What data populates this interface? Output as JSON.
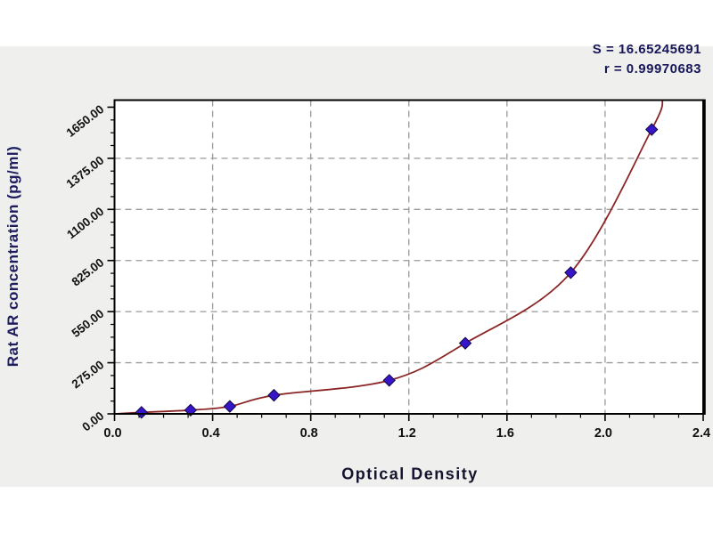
{
  "page": {
    "background": "#ffffff",
    "panel_background": "#efefee"
  },
  "annotations": {
    "s_label": "S = 16.65245691",
    "r_label": "r = 0.99970683"
  },
  "chart_data": {
    "type": "scatter",
    "title": "",
    "xlabel": "Optical Density",
    "ylabel": "Rat AR concentration (pg/ml)",
    "legend": "none",
    "grid": "dashed major gridlines",
    "xlim": [
      0.0,
      2.4
    ],
    "ylim": [
      0,
      1688
    ],
    "x": [
      0.11,
      0.31,
      0.47,
      0.65,
      1.12,
      1.43,
      1.86,
      2.19
    ],
    "y": [
      8,
      20,
      40,
      100,
      180,
      380,
      760,
      1530
    ],
    "fit_curve": {
      "shape": "smooth exponential-like fit through all points",
      "start": [
        0.0,
        0.0
      ],
      "end_extrapolated": [
        2.235,
        1688
      ]
    },
    "x_major_ticks": [
      0.0,
      0.4,
      0.8,
      1.2,
      1.6,
      2.0,
      2.4
    ],
    "x_tick_labels": [
      "0.0",
      "0.4",
      "0.8",
      "1.2",
      "1.6",
      "2.0",
      "2.4"
    ],
    "x_minor_step": 0.1,
    "y_major_ticks": [
      0,
      275,
      550,
      825,
      1100,
      1375,
      1650
    ],
    "y_tick_labels": [
      "0.00",
      "275.00",
      "550.00",
      "825.00",
      "1100.00",
      "1375.00",
      "1650.00"
    ],
    "y_minor_step": 68.75,
    "colors": {
      "curve": "#8b2525",
      "marker_fill": "#3715c8",
      "marker_stroke": "#10083f",
      "grid": "#999999",
      "frame": "#000000",
      "tick_label": "#111111",
      "axis_title": "#1d1d60",
      "annotation": "#17175a",
      "plot_background": "#ffffff"
    }
  }
}
